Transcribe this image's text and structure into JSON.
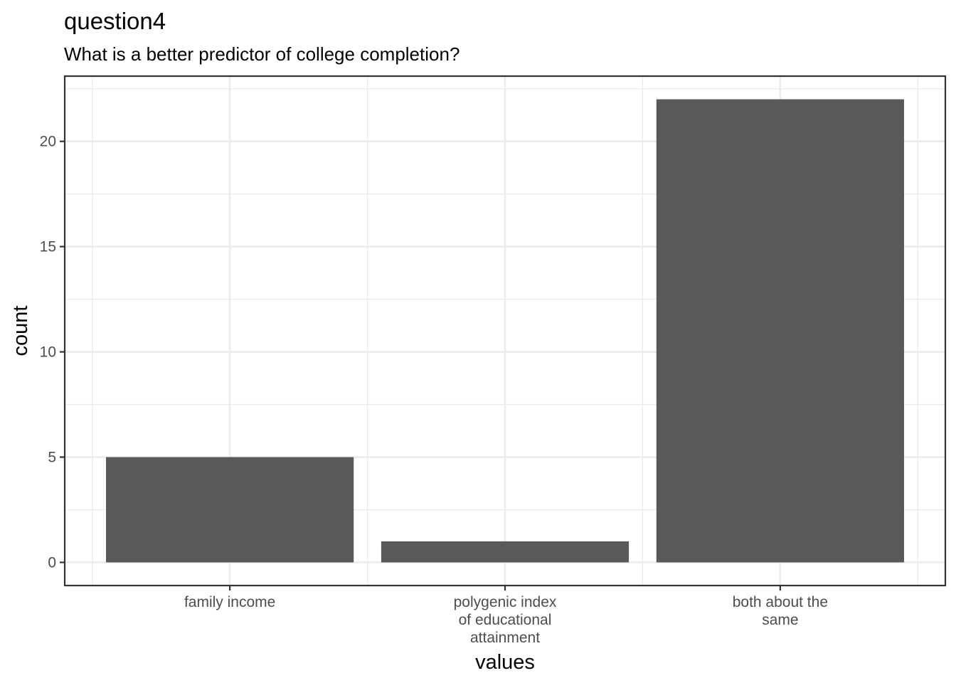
{
  "chart_data": {
    "type": "bar",
    "title": "question4",
    "subtitle": "What is a better predictor of college completion?",
    "xlabel": "values",
    "ylabel": "count",
    "categories": [
      [
        "family income"
      ],
      [
        "polygenic index",
        "of educational",
        "attainment"
      ],
      [
        "both about the",
        "same"
      ]
    ],
    "values": [
      5,
      1,
      22
    ],
    "ylim": [
      -1.1,
      23.1
    ],
    "yticks": [
      0,
      5,
      10,
      15,
      20
    ],
    "grid": true,
    "bar_color": "#595959",
    "theme": "bw"
  }
}
